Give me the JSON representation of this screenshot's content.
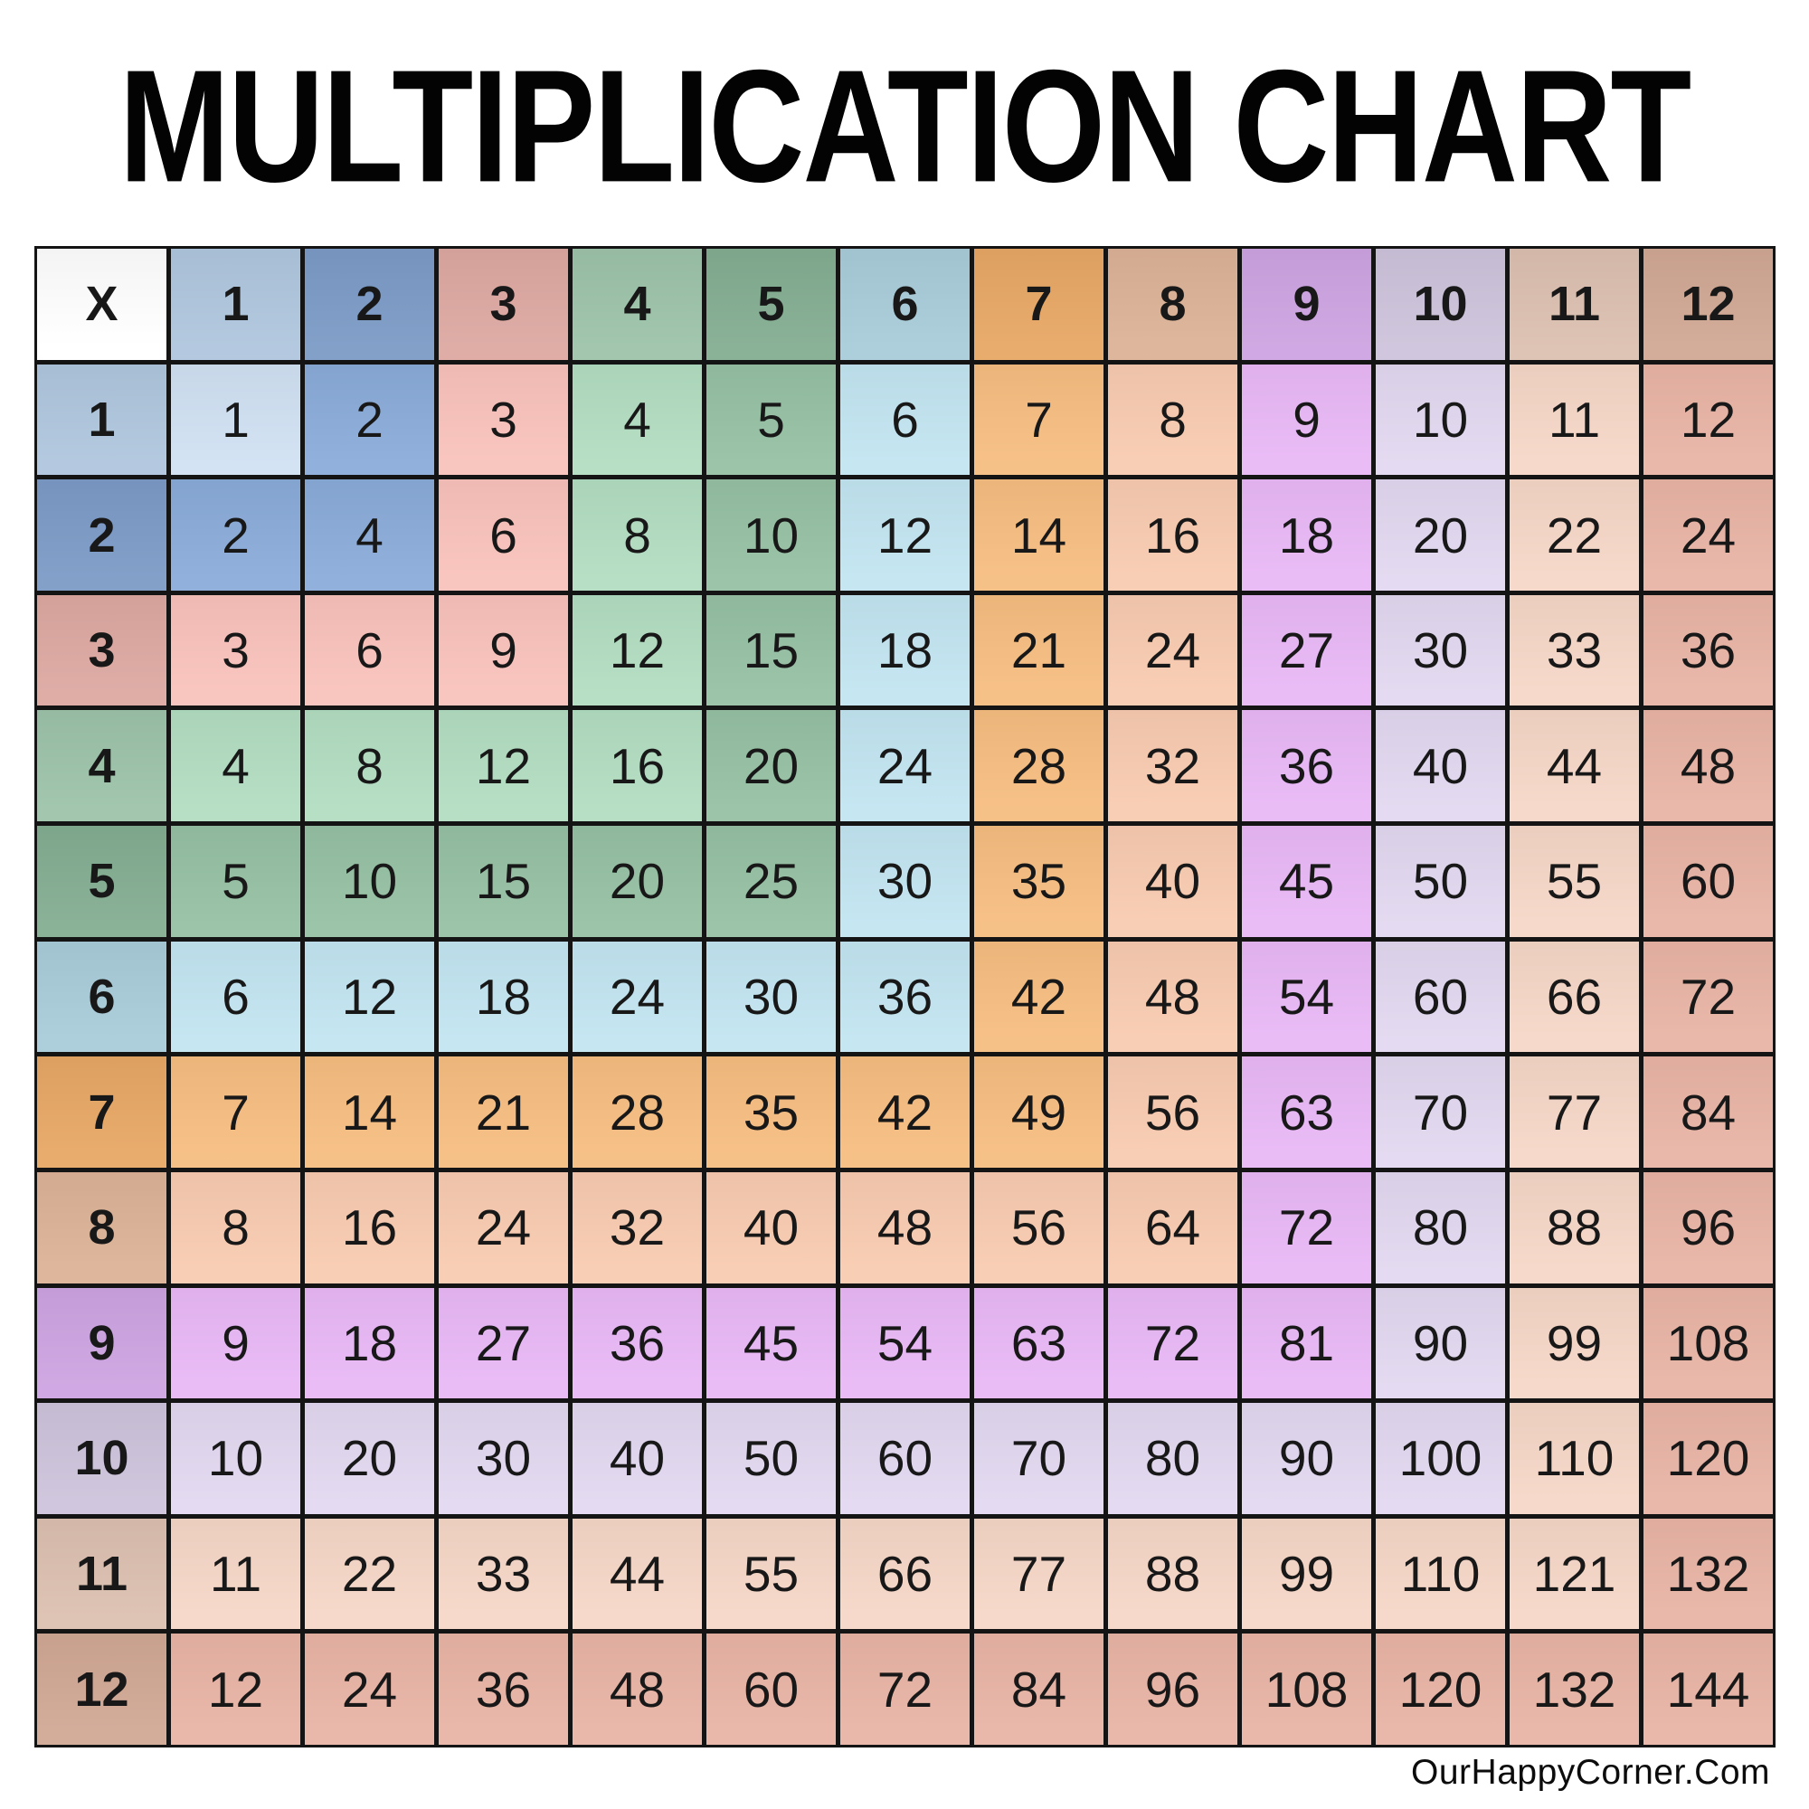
{
  "title": "MULTIPLICATION CHART",
  "footer": "OurHappyCorner.Com",
  "grid": {
    "corner_label": "X"
  },
  "colors": {
    "background": "#ffffff",
    "grid_line": "#141414",
    "number_text": "#181818",
    "corner_bg": "#ffffff",
    "bands": [
      {
        "n": 1,
        "header": "#afc6dd",
        "cell": "#d0e1f3"
      },
      {
        "n": 2,
        "header": "#7b9ac6",
        "cell": "#8aabd9"
      },
      {
        "n": 3,
        "header": "#dda8a1",
        "cell": "#f9c2bb"
      },
      {
        "n": 4,
        "header": "#9cc3a9",
        "cell": "#b2ddc1"
      },
      {
        "n": 5,
        "header": "#83ad91",
        "cell": "#95c0a3"
      },
      {
        "n": 6,
        "header": "#a8ccd9",
        "cell": "#c2e5f1"
      },
      {
        "n": 7,
        "header": "#e7a764",
        "cell": "#f6bd80"
      },
      {
        "n": 8,
        "header": "#dcb296",
        "cell": "#f8cbb0"
      },
      {
        "n": 9,
        "header": "#cda3e1",
        "cell": "#e9b8f6"
      },
      {
        "n": 10,
        "header": "#cdc3db",
        "cell": "#e2d8f0"
      },
      {
        "n": 11,
        "header": "#dcc0b0",
        "cell": "#f6d7c7"
      },
      {
        "n": 12,
        "header": "#d1a794",
        "cell": "#e9b4a5"
      }
    ]
  },
  "chart_data": {
    "type": "table",
    "title": "MULTIPLICATION CHART",
    "corner_label": "X",
    "col_labels": [
      "1",
      "2",
      "3",
      "4",
      "5",
      "6",
      "7",
      "8",
      "9",
      "10",
      "11",
      "12"
    ],
    "row_labels": [
      "1",
      "2",
      "3",
      "4",
      "5",
      "6",
      "7",
      "8",
      "9",
      "10",
      "11",
      "12"
    ],
    "values": [
      [
        1,
        2,
        3,
        4,
        5,
        6,
        7,
        8,
        9,
        10,
        11,
        12
      ],
      [
        2,
        4,
        6,
        8,
        10,
        12,
        14,
        16,
        18,
        20,
        22,
        24
      ],
      [
        3,
        6,
        9,
        12,
        15,
        18,
        21,
        24,
        27,
        30,
        33,
        36
      ],
      [
        4,
        8,
        12,
        16,
        20,
        24,
        28,
        32,
        36,
        40,
        44,
        48
      ],
      [
        5,
        10,
        15,
        20,
        25,
        30,
        35,
        40,
        45,
        50,
        55,
        60
      ],
      [
        6,
        12,
        18,
        24,
        30,
        36,
        42,
        48,
        54,
        60,
        66,
        72
      ],
      [
        7,
        14,
        21,
        28,
        35,
        42,
        49,
        56,
        63,
        70,
        77,
        84
      ],
      [
        8,
        16,
        24,
        32,
        40,
        48,
        56,
        64,
        72,
        80,
        88,
        96
      ],
      [
        9,
        18,
        27,
        36,
        45,
        54,
        63,
        72,
        81,
        90,
        99,
        108
      ],
      [
        10,
        20,
        30,
        40,
        50,
        60,
        70,
        80,
        90,
        100,
        110,
        120
      ],
      [
        11,
        22,
        33,
        44,
        55,
        66,
        77,
        88,
        99,
        110,
        121,
        132
      ],
      [
        12,
        24,
        36,
        48,
        60,
        72,
        84,
        96,
        108,
        120,
        132,
        144
      ]
    ],
    "layout": {
      "grid_lines": true,
      "color_rule": "cell color band = max(row, column); headers use saturated band color, products use light band color"
    }
  }
}
